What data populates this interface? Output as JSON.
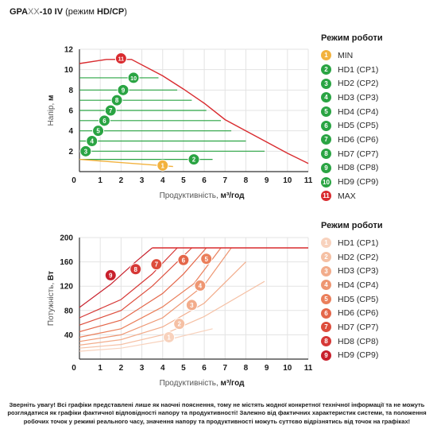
{
  "title": {
    "brand": "GPA",
    "model_mid": "XX",
    "model_end": "-10 IV",
    "mode_prefix": " (режим ",
    "mode_value": "HD/CP",
    "mode_suffix": ")"
  },
  "legend_top": {
    "title": "Режим роботи",
    "items": [
      {
        "badge": "1",
        "label": "MIN",
        "color": "#f2b23e"
      },
      {
        "badge": "2",
        "label": "HD1 (CP1)",
        "color": "#2aa443"
      },
      {
        "badge": "3",
        "label": "HD2 (CP2)",
        "color": "#2aa443"
      },
      {
        "badge": "4",
        "label": "HD3 (CP3)",
        "color": "#2aa443"
      },
      {
        "badge": "5",
        "label": "HD4 (CP4)",
        "color": "#2aa443"
      },
      {
        "badge": "6",
        "label": "HD5 (CP5)",
        "color": "#2aa443"
      },
      {
        "badge": "7",
        "label": "HD6 (CP6)",
        "color": "#2aa443"
      },
      {
        "badge": "8",
        "label": "HD7 (CP7)",
        "color": "#2aa443"
      },
      {
        "badge": "9",
        "label": "HD8 (CP8)",
        "color": "#2aa443"
      },
      {
        "badge": "10",
        "label": "HD9 (CP9)",
        "color": "#2aa443"
      },
      {
        "badge": "11",
        "label": "MAX",
        "color": "#d92b2f"
      }
    ]
  },
  "legend_bottom": {
    "title": "Режим роботи",
    "items": [
      {
        "badge": "1",
        "label": "HD1 (CP1)",
        "color": "#f8d2bd"
      },
      {
        "badge": "2",
        "label": "HD2 (CP2)",
        "color": "#f5c0a4"
      },
      {
        "badge": "3",
        "label": "HD3 (CP3)",
        "color": "#f2ac8b"
      },
      {
        "badge": "4",
        "label": "HD4 (CP4)",
        "color": "#ee9672"
      },
      {
        "badge": "5",
        "label": "HD5 (CP5)",
        "color": "#ea7f5b"
      },
      {
        "badge": "6",
        "label": "HD6 (CP6)",
        "color": "#e46649"
      },
      {
        "badge": "7",
        "label": "HD7 (CP7)",
        "color": "#dd4d3c"
      },
      {
        "badge": "8",
        "label": "HD8 (CP8)",
        "color": "#d63836"
      },
      {
        "badge": "9",
        "label": "HD9 (CP9)",
        "color": "#c8202c"
      }
    ]
  },
  "footnote": "Зверніть увагу! Всі графіки представлені лише як наочні пояснення, тому не містять жодної конкретної технічної інформації та не можуть розглядатися як графіки фактичної відповідності напору та продуктивності! Залежно від фактичних характеристик системи, та положення робочих точок у режимі реального часу, значення напору та продуктивності можуть суттєво відрізнятись від точок на графіках!",
  "chart_data": [
    {
      "type": "line",
      "title": "",
      "xlabel": "Продуктивність,",
      "xlabel_unit": "м³/год",
      "ylabel": "Напір,",
      "ylabel_unit": "м",
      "xlim": [
        0,
        11
      ],
      "ylim": [
        0,
        12
      ],
      "xticks": [
        1,
        2,
        3,
        4,
        5,
        6,
        7,
        8,
        9,
        10,
        11
      ],
      "yticks": [
        0,
        2,
        4,
        6,
        8,
        10,
        12
      ],
      "grid": true,
      "max_curve": {
        "name": "MAX",
        "badge": "11",
        "color": "#d92b2f",
        "x": [
          0,
          1.3,
          2.5,
          4,
          5,
          6,
          7,
          8,
          9,
          10,
          11
        ],
        "y": [
          10.6,
          11,
          11,
          9.4,
          8.1,
          6.7,
          5.1,
          4,
          2.9,
          1.8,
          0.8
        ],
        "badge_at": [
          2.0,
          11.1
        ]
      },
      "min_curve": {
        "name": "MIN",
        "badge": "1",
        "color": "#f2b23e",
        "x": [
          0,
          4.5
        ],
        "y": [
          1.2,
          0.5
        ],
        "badge_at": [
          4.0,
          0.6
        ]
      },
      "series": [
        {
          "badge": "2",
          "y": 1.2,
          "x_end": 6.4,
          "badge_at": [
            5.5,
            1.2
          ],
          "color": "#2aa443"
        },
        {
          "badge": "3",
          "y": 2.0,
          "x_end": 8.9,
          "badge_at": [
            0.3,
            2.0
          ],
          "color": "#2aa443"
        },
        {
          "badge": "4",
          "y": 3.0,
          "x_end": 8.0,
          "badge_at": [
            0.6,
            3.0
          ],
          "color": "#2aa443"
        },
        {
          "badge": "5",
          "y": 4.0,
          "x_end": 7.3,
          "badge_at": [
            0.9,
            4.0
          ],
          "color": "#2aa443"
        },
        {
          "badge": "6",
          "y": 5.0,
          "x_end": 6.8,
          "badge_at": [
            1.2,
            5.0
          ],
          "color": "#2aa443"
        },
        {
          "badge": "7",
          "y": 6.0,
          "x_end": 6.1,
          "badge_at": [
            1.5,
            6.0
          ],
          "color": "#2aa443"
        },
        {
          "badge": "8",
          "y": 7.0,
          "x_end": 5.4,
          "badge_at": [
            1.8,
            7.0
          ],
          "color": "#2aa443"
        },
        {
          "badge": "9",
          "y": 8.0,
          "x_end": 4.7,
          "badge_at": [
            2.1,
            8.0
          ],
          "color": "#2aa443"
        },
        {
          "badge": "10",
          "y": 9.2,
          "x_end": 3.8,
          "badge_at": [
            2.6,
            9.2
          ],
          "color": "#2aa443"
        }
      ]
    },
    {
      "type": "line",
      "title": "",
      "xlabel": "Продуктивність,",
      "xlabel_unit": "м³/год",
      "ylabel": "Потужність,",
      "ylabel_unit": "Вт",
      "xlim": [
        0,
        11
      ],
      "ylim": [
        0,
        200
      ],
      "xticks": [
        1,
        2,
        3,
        4,
        5,
        6,
        7,
        8,
        9,
        10,
        11
      ],
      "yticks": [
        0,
        40,
        80,
        120,
        160,
        200
      ],
      "grid": true,
      "cap_line": {
        "y": 183,
        "x_start": 3.5,
        "x_end": 11,
        "color": "#d92b2f"
      },
      "series": [
        {
          "badge": "1",
          "x": [
            0,
            2,
            4,
            6.4
          ],
          "y": [
            13,
            18,
            30,
            50
          ],
          "badge_at": [
            4.3,
            36
          ],
          "color": "#f8d2bd"
        },
        {
          "badge": "2",
          "x": [
            0,
            2,
            4,
            6,
            8.9
          ],
          "y": [
            18,
            24,
            40,
            70,
            128
          ],
          "badge_at": [
            4.8,
            58
          ],
          "color": "#f5c0a4"
        },
        {
          "badge": "3",
          "x": [
            0,
            2,
            4,
            6,
            8
          ],
          "y": [
            23,
            32,
            53,
            92,
            160
          ],
          "badge_at": [
            5.4,
            89
          ],
          "color": "#f2ac8b"
        },
        {
          "badge": "4",
          "x": [
            0,
            2,
            4,
            6,
            7.3
          ],
          "y": [
            29,
            40,
            68,
            122,
            183
          ],
          "badge_at": [
            5.8,
            121
          ],
          "color": "#ee9672"
        },
        {
          "badge": "5",
          "x": [
            0,
            2,
            4,
            5.5,
            6.8
          ],
          "y": [
            36,
            50,
            86,
            124,
            183
          ],
          "badge_at": [
            6.1,
            165
          ],
          "color": "#ea7f5b"
        },
        {
          "badge": "6",
          "x": [
            0,
            2,
            4,
            5,
            6.1
          ],
          "y": [
            45,
            64,
            108,
            140,
            183
          ],
          "badge_at": [
            5.0,
            163
          ],
          "color": "#e46649"
        },
        {
          "badge": "7",
          "x": [
            0,
            2,
            3.5,
            5.4
          ],
          "y": [
            56,
            80,
            120,
            183
          ],
          "badge_at": [
            3.7,
            156
          ],
          "color": "#dd4d3c"
        },
        {
          "badge": "8",
          "x": [
            0,
            2,
            3.5,
            4.7
          ],
          "y": [
            68,
            98,
            140,
            183
          ],
          "badge_at": [
            2.7,
            148
          ],
          "color": "#d63836"
        },
        {
          "badge": "9",
          "x": [
            0,
            1.5,
            2.7,
            3.5
          ],
          "y": [
            85,
            123,
            160,
            183
          ],
          "badge_at": [
            1.5,
            138
          ],
          "color": "#c8202c"
        }
      ]
    }
  ]
}
